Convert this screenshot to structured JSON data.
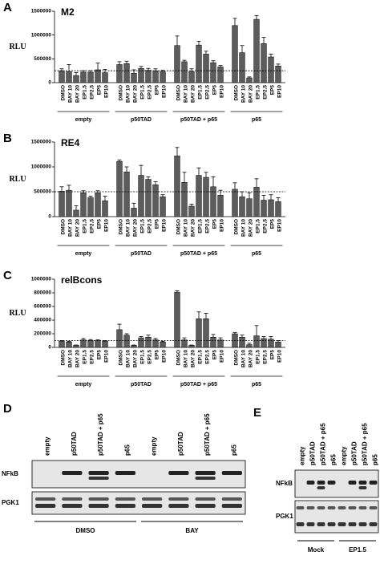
{
  "chart_data": [
    {
      "type": "bar",
      "panel": "A",
      "title": "M2",
      "ylabel": "RLU",
      "color": "#5c5c5c",
      "ylim": [
        0,
        1500000
      ],
      "yticks": [
        0,
        500000,
        1000000,
        1500000
      ],
      "reference_line": 250000,
      "categories": [
        "DMSO",
        "BAY 10",
        "BAY 20",
        "EP1.5",
        "EP2.5",
        "EP5",
        "EP10",
        "DMSO",
        "BAY 10",
        "BAY 20",
        "EP1.5",
        "EP2.5",
        "EP5",
        "EP10",
        "DMSO",
        "BAY 10",
        "BAY 20",
        "EP1.5",
        "EP2.5",
        "EP5",
        "EP10",
        "DMSO",
        "BAY 10",
        "BAY 20",
        "EP1.5",
        "EP2.5",
        "EP5",
        "EP10"
      ],
      "groups": [
        "empty",
        "p50TAD",
        "p50TAD + p65",
        "p65"
      ],
      "values": [
        250000,
        230000,
        150000,
        220000,
        220000,
        270000,
        210000,
        380000,
        400000,
        200000,
        300000,
        260000,
        250000,
        230000,
        780000,
        440000,
        230000,
        790000,
        600000,
        420000,
        330000,
        1200000,
        630000,
        100000,
        1330000,
        820000,
        540000,
        350000
      ],
      "errors": [
        40000,
        150000,
        60000,
        30000,
        30000,
        140000,
        70000,
        60000,
        50000,
        70000,
        40000,
        40000,
        40000,
        30000,
        200000,
        30000,
        60000,
        80000,
        60000,
        40000,
        30000,
        150000,
        150000,
        20000,
        80000,
        130000,
        60000,
        40000
      ]
    },
    {
      "type": "bar",
      "panel": "B",
      "title": "RE4",
      "ylabel": "RLU",
      "color": "#5c5c5c",
      "ylim": [
        0,
        1500000
      ],
      "yticks": [
        0,
        500000,
        1000000,
        1500000
      ],
      "reference_line": 500000,
      "categories": [
        "DMSO",
        "BAY 10",
        "BAY 20",
        "EP1.5",
        "EP2.5",
        "EP5",
        "EP10",
        "DMSO",
        "BAY 10",
        "BAY 20",
        "EP1.5",
        "EP2.5",
        "EP5",
        "EP10",
        "DMSO",
        "BAY 10",
        "BAY 20",
        "EP1.5",
        "EP2.5",
        "EP5",
        "EP10",
        "DMSO",
        "BAY 10",
        "BAY 20",
        "EP1.5",
        "EP2.5",
        "EP5",
        "EP10"
      ],
      "groups": [
        "empty",
        "p50TAD",
        "p50TAD + p65",
        "p65"
      ],
      "values": [
        510000,
        530000,
        130000,
        480000,
        380000,
        480000,
        320000,
        1110000,
        900000,
        170000,
        830000,
        750000,
        640000,
        400000,
        1220000,
        690000,
        210000,
        830000,
        790000,
        600000,
        430000,
        550000,
        400000,
        360000,
        590000,
        330000,
        340000,
        300000
      ],
      "errors": [
        90000,
        100000,
        90000,
        40000,
        30000,
        40000,
        90000,
        30000,
        100000,
        100000,
        200000,
        50000,
        60000,
        40000,
        170000,
        200000,
        40000,
        150000,
        100000,
        200000,
        100000,
        130000,
        100000,
        120000,
        170000,
        100000,
        100000,
        80000
      ]
    },
    {
      "type": "bar",
      "panel": "C",
      "title": "relBcons",
      "ylabel": "RLU",
      "color": "#5c5c5c",
      "ylim": [
        0,
        1000000
      ],
      "yticks": [
        0,
        200000,
        400000,
        600000,
        800000,
        1000000
      ],
      "reference_line": 100000,
      "categories": [
        "DMSO",
        "BAY 10",
        "BAY 20",
        "EP1.5",
        "EP2.5",
        "EP5",
        "EP10",
        "DMSO",
        "BAY 10",
        "BAY 20",
        "EP1.5",
        "EP2.5",
        "EP5",
        "EP10",
        "DMSO",
        "BAY 10",
        "BAY 20",
        "EP1.5",
        "EP2.5",
        "EP5",
        "EP10",
        "DMSO",
        "BAY 10",
        "BAY 20",
        "EP1.5",
        "EP2.5",
        "EP5",
        "EP10"
      ],
      "groups": [
        "empty",
        "p50TAD",
        "p50TAD + p65",
        "p65"
      ],
      "values": [
        90000,
        80000,
        30000,
        110000,
        100000,
        100000,
        90000,
        260000,
        180000,
        30000,
        140000,
        150000,
        110000,
        80000,
        810000,
        110000,
        30000,
        420000,
        420000,
        150000,
        110000,
        200000,
        150000,
        40000,
        170000,
        130000,
        120000,
        80000
      ],
      "errors": [
        10000,
        10000,
        5000,
        20000,
        15000,
        10000,
        10000,
        80000,
        20000,
        5000,
        20000,
        30000,
        20000,
        10000,
        20000,
        30000,
        5000,
        100000,
        80000,
        40000,
        30000,
        20000,
        30000,
        20000,
        150000,
        30000,
        40000,
        20000
      ]
    }
  ],
  "blots": [
    {
      "panel": "D",
      "lanes": [
        "empty",
        "p50TAD",
        "p50TAD + p65",
        "p65",
        "empty",
        "p50TAD",
        "p50TAD + p65",
        "p65"
      ],
      "rows": [
        "NFkB",
        "PGK1"
      ],
      "groups": [
        "DMSO",
        "BAY"
      ]
    },
    {
      "panel": "E",
      "lanes": [
        "empty",
        "p50TAD",
        "p50TAD + p65",
        "p65",
        "empty",
        "p50TAD",
        "p50TAD + p65",
        "p65"
      ],
      "rows": [
        "NFkB",
        "PGK1"
      ],
      "groups": [
        "Mock",
        "EP1.5"
      ]
    }
  ]
}
